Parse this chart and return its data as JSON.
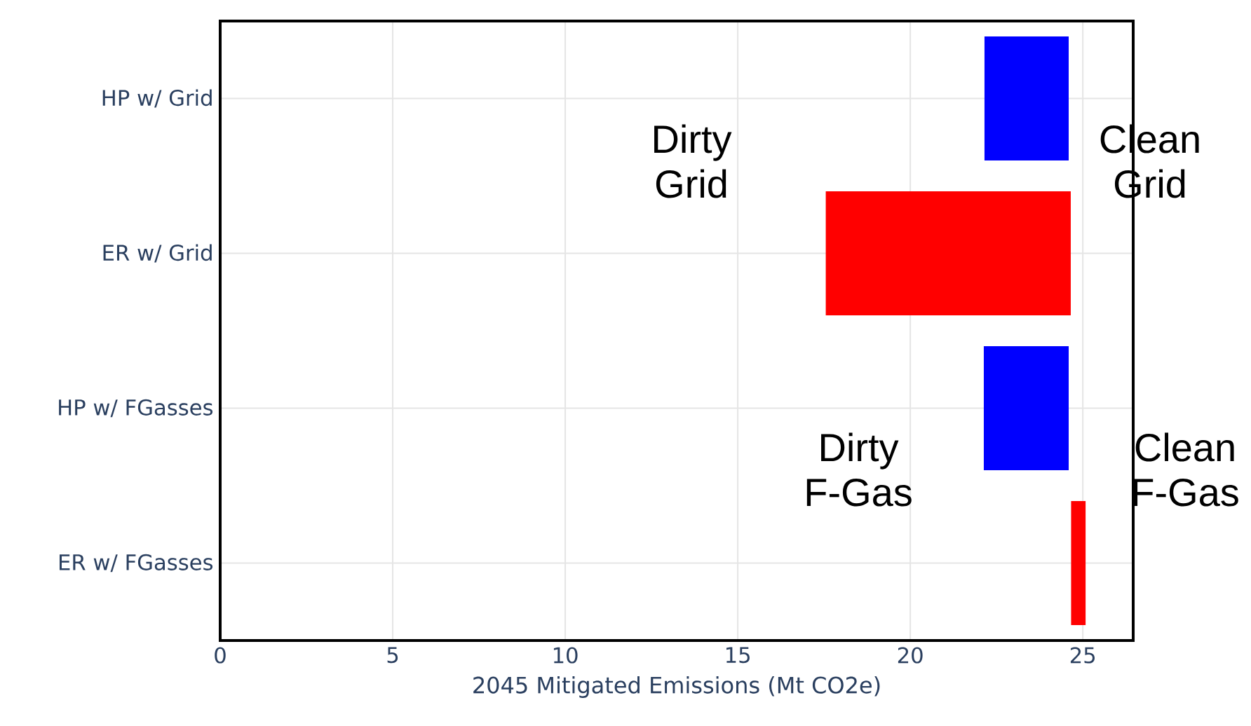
{
  "chart_data": {
    "type": "bar",
    "orientation": "horizontal",
    "xlabel": "2045 Mitigated Emissions (Mt CO2e)",
    "categories": [
      "HP w/ Grid",
      "ER w/ Grid",
      "HP w/ FGasses",
      "ER w/ FGasses"
    ],
    "base": [
      22.15,
      17.55,
      22.13,
      24.66
    ],
    "values": [
      2.44,
      7.1,
      2.46,
      0.42
    ],
    "colors": [
      "#0000ff",
      "#ff0000",
      "#0000ff",
      "#ff0000"
    ],
    "xlim": [
      0,
      26.46
    ],
    "xticks": [
      0,
      5,
      10,
      15,
      20,
      25
    ],
    "grid": true,
    "annotations": [
      "Dirty Grid",
      "Clean Grid",
      "Dirty F-Gas",
      "Clean F-Gas"
    ]
  }
}
